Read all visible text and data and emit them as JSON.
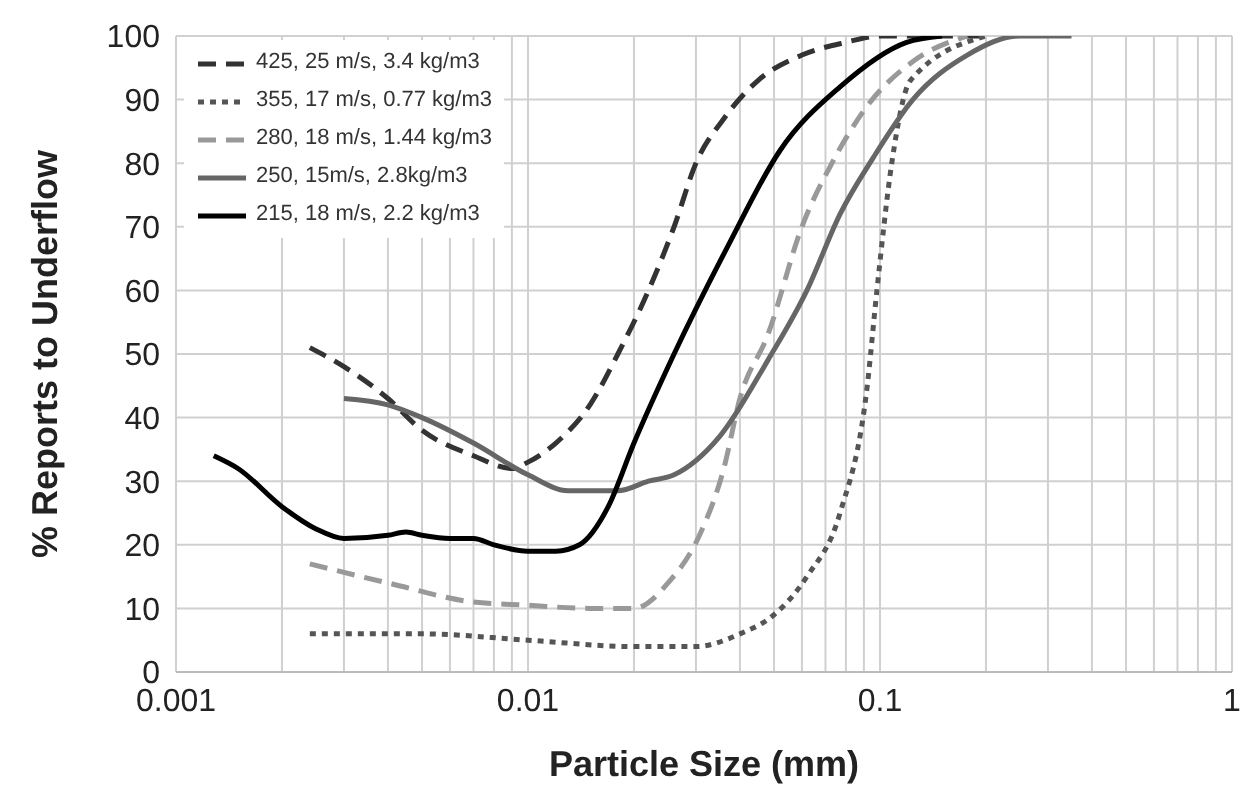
{
  "chart_data": {
    "type": "line",
    "xlabel": "Particle Size (mm)",
    "ylabel": "% Reports to Underflow",
    "log": "x",
    "grid": true,
    "legend": "top left",
    "marker": "none",
    "xlim": [
      0.001,
      1
    ],
    "ylim": [
      0,
      100
    ],
    "xticks": [
      0.001,
      {
        "value": 0.002,
        "label": null
      },
      {
        "value": 0.003,
        "label": null
      },
      {
        "value": 0.004,
        "label": null
      },
      {
        "value": 0.005,
        "label": null
      },
      {
        "value": 0.006,
        "label": null
      },
      {
        "value": 0.007,
        "label": null
      },
      {
        "value": 0.008,
        "label": null
      },
      {
        "value": 0.009,
        "label": null
      },
      0.01,
      {
        "value": 0.02,
        "label": null
      },
      {
        "value": 0.03,
        "label": null
      },
      {
        "value": 0.04,
        "label": null
      },
      {
        "value": 0.05,
        "label": null
      },
      {
        "value": 0.06,
        "label": null
      },
      {
        "value": 0.07,
        "label": null
      },
      {
        "value": 0.08,
        "label": null
      },
      {
        "value": 0.09,
        "label": null
      },
      0.1,
      {
        "value": 0.2,
        "label": null
      },
      {
        "value": 0.3,
        "label": null
      },
      {
        "value": 0.4,
        "label": null
      },
      {
        "value": 0.5,
        "label": null
      },
      {
        "value": 0.6,
        "label": null
      },
      {
        "value": 0.7,
        "label": null
      },
      {
        "value": 0.8,
        "label": null
      },
      {
        "value": 0.9,
        "label": null
      },
      1
    ],
    "yticks": [
      0,
      10,
      20,
      30,
      40,
      50,
      60,
      70,
      80,
      90,
      100
    ],
    "series": [
      {
        "name": "425, 25 m/s, 3.4 kg/m3",
        "color": "#333333",
        "line_style": "dashed",
        "x": [
          0.0024,
          0.003,
          0.004,
          0.005,
          0.007,
          0.009,
          0.01,
          0.012,
          0.015,
          0.018,
          0.022,
          0.026,
          0.03,
          0.036,
          0.045,
          0.06,
          0.08,
          0.1,
          0.2
        ],
        "values": [
          51,
          48,
          43,
          38,
          34,
          32,
          33,
          36,
          42,
          50,
          60,
          70,
          80,
          87,
          93,
          97,
          99,
          100,
          100
        ]
      },
      {
        "name": "355, 17 m/s, 0.77 kg/m3",
        "color": "#555555",
        "line_style": "dotted",
        "x": [
          0.0024,
          0.003,
          0.005,
          0.01,
          0.02,
          0.03,
          0.04,
          0.05,
          0.062,
          0.077,
          0.092,
          0.098,
          0.108,
          0.122,
          0.2
        ],
        "values": [
          6,
          6,
          6,
          5,
          4,
          4,
          6,
          9,
          15,
          25,
          45,
          60,
          80,
          93,
          100
        ]
      },
      {
        "name": "280, 18 m/s, 1.44 kg/m3",
        "color": "#999999",
        "line_style": "dashed",
        "x": [
          0.0024,
          0.004,
          0.007,
          0.01,
          0.015,
          0.02,
          0.025,
          0.031,
          0.036,
          0.04,
          0.048,
          0.06,
          0.073,
          0.092,
          0.124,
          0.177
        ],
        "values": [
          17,
          14,
          11,
          10.5,
          10,
          10,
          14,
          22,
          32,
          43,
          53,
          70,
          80,
          89,
          96,
          100
        ]
      },
      {
        "name": "250, 15m/s, 2.8kg/m3",
        "color": "#666666",
        "line_style": "solid",
        "x": [
          0.003,
          0.004,
          0.005,
          0.007,
          0.01,
          0.013,
          0.018,
          0.022,
          0.026,
          0.035,
          0.048,
          0.062,
          0.077,
          0.096,
          0.124,
          0.177,
          0.25,
          0.35
        ],
        "values": [
          43,
          42,
          40,
          36,
          31,
          28.5,
          28.5,
          30,
          31,
          37,
          49,
          60,
          72,
          81,
          90,
          97,
          100,
          100
        ]
      },
      {
        "name": "215, 18 m/s, 2.2 kg/m3",
        "color": "#000000",
        "line_style": "solid",
        "x": [
          0.00128,
          0.0015,
          0.002,
          0.0025,
          0.003,
          0.004,
          0.0045,
          0.005,
          0.006,
          0.007,
          0.008,
          0.01,
          0.012,
          0.014,
          0.0169,
          0.02,
          0.026,
          0.037,
          0.052,
          0.077,
          0.119,
          0.15
        ],
        "values": [
          34,
          32,
          26,
          22.5,
          21,
          21.5,
          22,
          21.5,
          21,
          21,
          20,
          19,
          19,
          20,
          26,
          36,
          50,
          67,
          82,
          92,
          99,
          100
        ]
      }
    ]
  }
}
